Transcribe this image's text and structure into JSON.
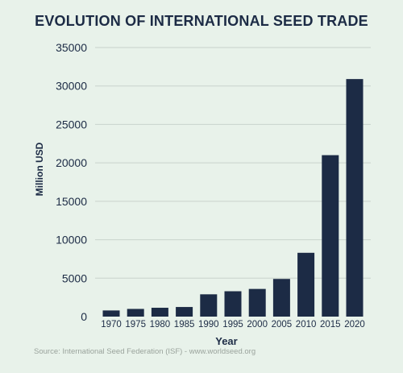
{
  "chart_data": {
    "type": "bar",
    "title": "EVOLUTION OF INTERNATIONAL SEED TRADE",
    "xlabel": "Year",
    "ylabel": "Million USD",
    "categories": [
      "1970",
      "1975",
      "1980",
      "1985",
      "1990",
      "1995",
      "2000",
      "2005",
      "2010",
      "2015",
      "2020"
    ],
    "values": [
      800,
      1000,
      1150,
      1250,
      2900,
      3300,
      3600,
      4900,
      8300,
      21000,
      30900
    ],
    "ylim": [
      0,
      35000
    ],
    "yticks": [
      0,
      5000,
      10000,
      15000,
      20000,
      25000,
      30000,
      35000
    ],
    "grid": "horizontal",
    "bar_color": "#1c2b45",
    "background": "#e8f2ea"
  },
  "source": "Source: International Seed Federation (ISF) - www.worldseed.org"
}
